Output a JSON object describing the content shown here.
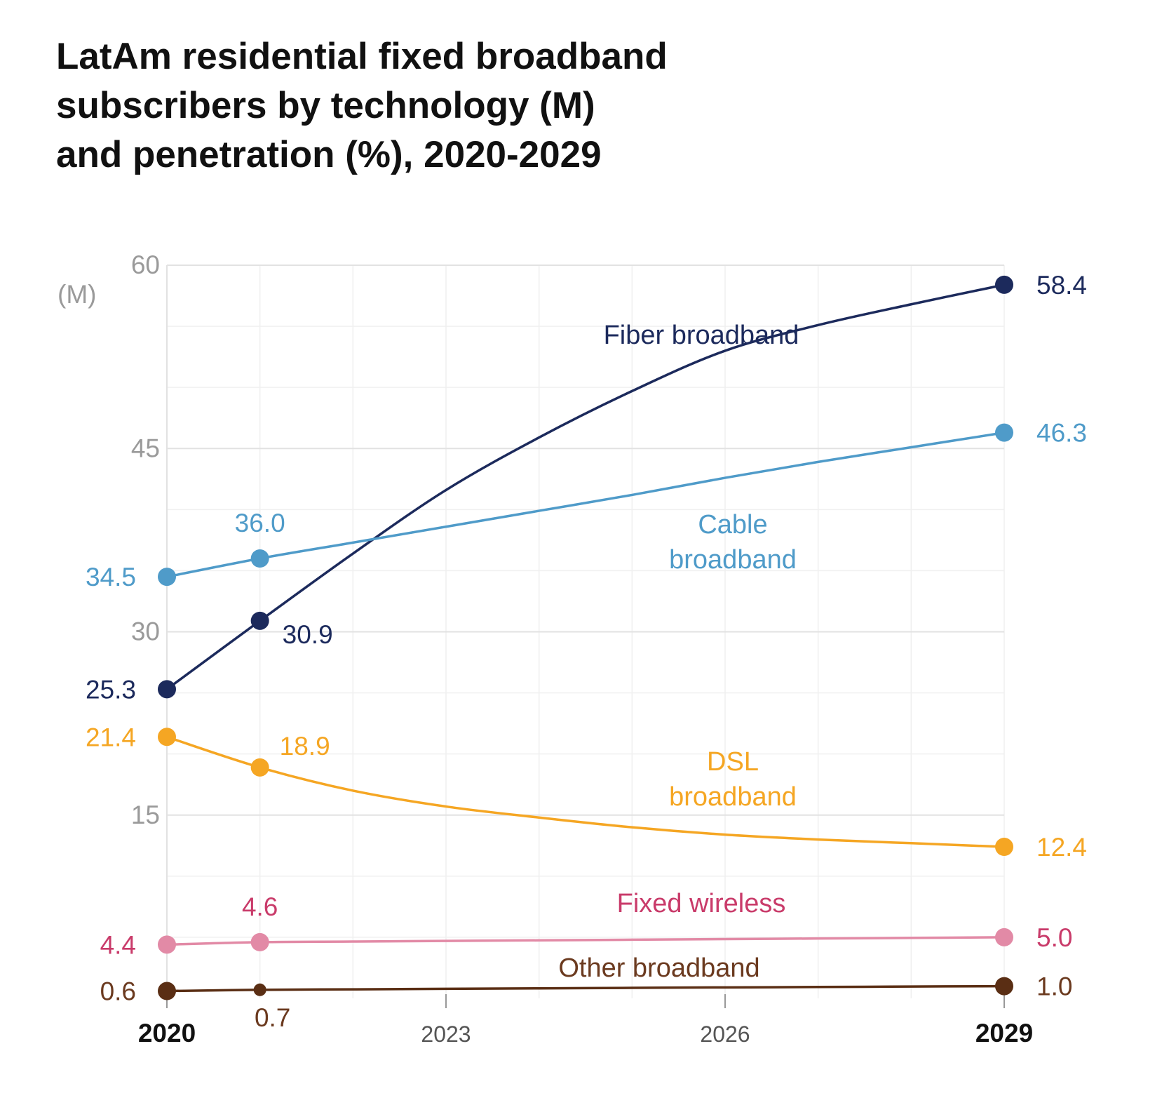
{
  "title_lines": [
    "LatAm residential fixed broadband",
    "subscribers by technology (M)",
    "and penetration (%), 2020-2029"
  ],
  "chart_data": {
    "type": "line",
    "title": "LatAm residential fixed broadband subscribers by technology (M) and penetration (%), 2020-2029",
    "ylabel": "(M)",
    "ylim": [
      0,
      60
    ],
    "yticks": [
      15,
      30,
      45,
      60
    ],
    "xlim": [
      2020,
      2029
    ],
    "xticks": [
      {
        "value": 2020,
        "label": "2020",
        "bold": true
      },
      {
        "value": 2023,
        "label": "2023",
        "bold": false
      },
      {
        "value": 2026,
        "label": "2026",
        "bold": false
      },
      {
        "value": 2029,
        "label": "2029",
        "bold": true
      }
    ],
    "grid": true,
    "x": [
      2020,
      2021,
      2022,
      2023,
      2024,
      2025,
      2026,
      2027,
      2028,
      2029
    ],
    "series": [
      {
        "name": "Fiber broadband",
        "name_lines": [
          "Fiber broadband"
        ],
        "color": "#1c2a5c",
        "values": [
          25.3,
          30.9,
          36.4,
          41.6,
          45.9,
          49.7,
          53.0,
          55.1,
          56.8,
          58.4
        ],
        "marked": [
          {
            "index": 0,
            "label": "25.3",
            "side": "left"
          },
          {
            "index": 1,
            "label": "30.9",
            "side": "below-right"
          },
          {
            "index": 9,
            "label": "58.4",
            "side": "right"
          }
        ]
      },
      {
        "name": "Cable broadband",
        "name_lines": [
          "Cable",
          "broadband"
        ],
        "color": "#4f9bc9",
        "values": [
          34.5,
          36.0,
          37.3,
          38.6,
          39.9,
          41.2,
          42.6,
          43.9,
          45.1,
          46.3
        ],
        "marked": [
          {
            "index": 0,
            "label": "34.5",
            "side": "left"
          },
          {
            "index": 1,
            "label": "36.0",
            "side": "above"
          },
          {
            "index": 9,
            "label": "46.3",
            "side": "right"
          }
        ]
      },
      {
        "name": "DSL broadband",
        "name_lines": [
          "DSL",
          "broadband"
        ],
        "color": "#f5a623",
        "values": [
          21.4,
          18.9,
          17.0,
          15.7,
          14.8,
          14.0,
          13.4,
          13.0,
          12.7,
          12.4
        ],
        "marked": [
          {
            "index": 0,
            "label": "21.4",
            "side": "left"
          },
          {
            "index": 1,
            "label": "18.9",
            "side": "above-right"
          },
          {
            "index": 9,
            "label": "12.4",
            "side": "right"
          }
        ]
      },
      {
        "name": "Fixed wireless",
        "name_lines": [
          "Fixed wireless"
        ],
        "color": "#e28aa6",
        "label_color": "#c93b6a",
        "values": [
          4.4,
          4.6,
          4.65,
          4.7,
          4.75,
          4.8,
          4.85,
          4.9,
          4.95,
          5.0
        ],
        "marked": [
          {
            "index": 0,
            "label": "4.4",
            "side": "left"
          },
          {
            "index": 1,
            "label": "4.6",
            "side": "above"
          },
          {
            "index": 9,
            "label": "5.0",
            "side": "right"
          }
        ]
      },
      {
        "name": "Other broadband",
        "name_lines": [
          "Other broadband"
        ],
        "color": "#5a2e14",
        "label_color": "#6b3a1f",
        "values": [
          0.6,
          0.7,
          0.74,
          0.78,
          0.82,
          0.86,
          0.9,
          0.93,
          0.97,
          1.0
        ],
        "marked": [
          {
            "index": 0,
            "label": "0.6",
            "side": "left"
          },
          {
            "index": 1,
            "label": "0.7",
            "side": "below"
          },
          {
            "index": 9,
            "label": "1.0",
            "side": "right"
          }
        ]
      }
    ]
  }
}
